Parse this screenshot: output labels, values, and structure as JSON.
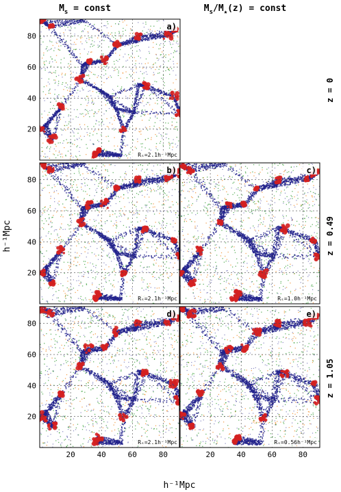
{
  "figure": {
    "column_titles": [
      {
        "main": "M",
        "sub": "s",
        "rest": " = const"
      },
      {
        "main": "M",
        "sub": "s",
        "mid": "/M",
        "sub2": "★",
        "rest": "(z) = const"
      }
    ],
    "row_labels": [
      "z = 0",
      "z = 0.49",
      "z = 1.05"
    ],
    "y_axis_label": "h⁻¹Mpc",
    "x_axis_label": "h⁻¹Mpc",
    "y_ticks": [
      "20",
      "40",
      "60",
      "80"
    ],
    "x_ticks": [
      "20",
      "40",
      "60",
      "80"
    ],
    "panels": [
      {
        "id": "a",
        "letter": "a)",
        "radius": "Rₛ=2.1h⁻¹Mpc",
        "row": 0,
        "col": 0
      },
      {
        "id": "b",
        "letter": "b)",
        "radius": "Rₛ=2.1h⁻¹Mpc",
        "row": 1,
        "col": 0
      },
      {
        "id": "c",
        "letter": "c)",
        "radius": "Rₛ=1.0h⁻¹Mpc",
        "row": 1,
        "col": 1
      },
      {
        "id": "d",
        "letter": "d)",
        "radius": "Rₛ=2.1h⁻¹Mpc",
        "row": 2,
        "col": 0
      },
      {
        "id": "e",
        "letter": "e)",
        "radius": "Rₛ=0.56h⁻¹Mpc",
        "row": 2,
        "col": 1
      }
    ],
    "colors": {
      "void": "#f08c28",
      "sheet": "#2e9a2e",
      "filament": "#22228c",
      "cluster": "#d42020",
      "grid": "#444444"
    }
  }
}
